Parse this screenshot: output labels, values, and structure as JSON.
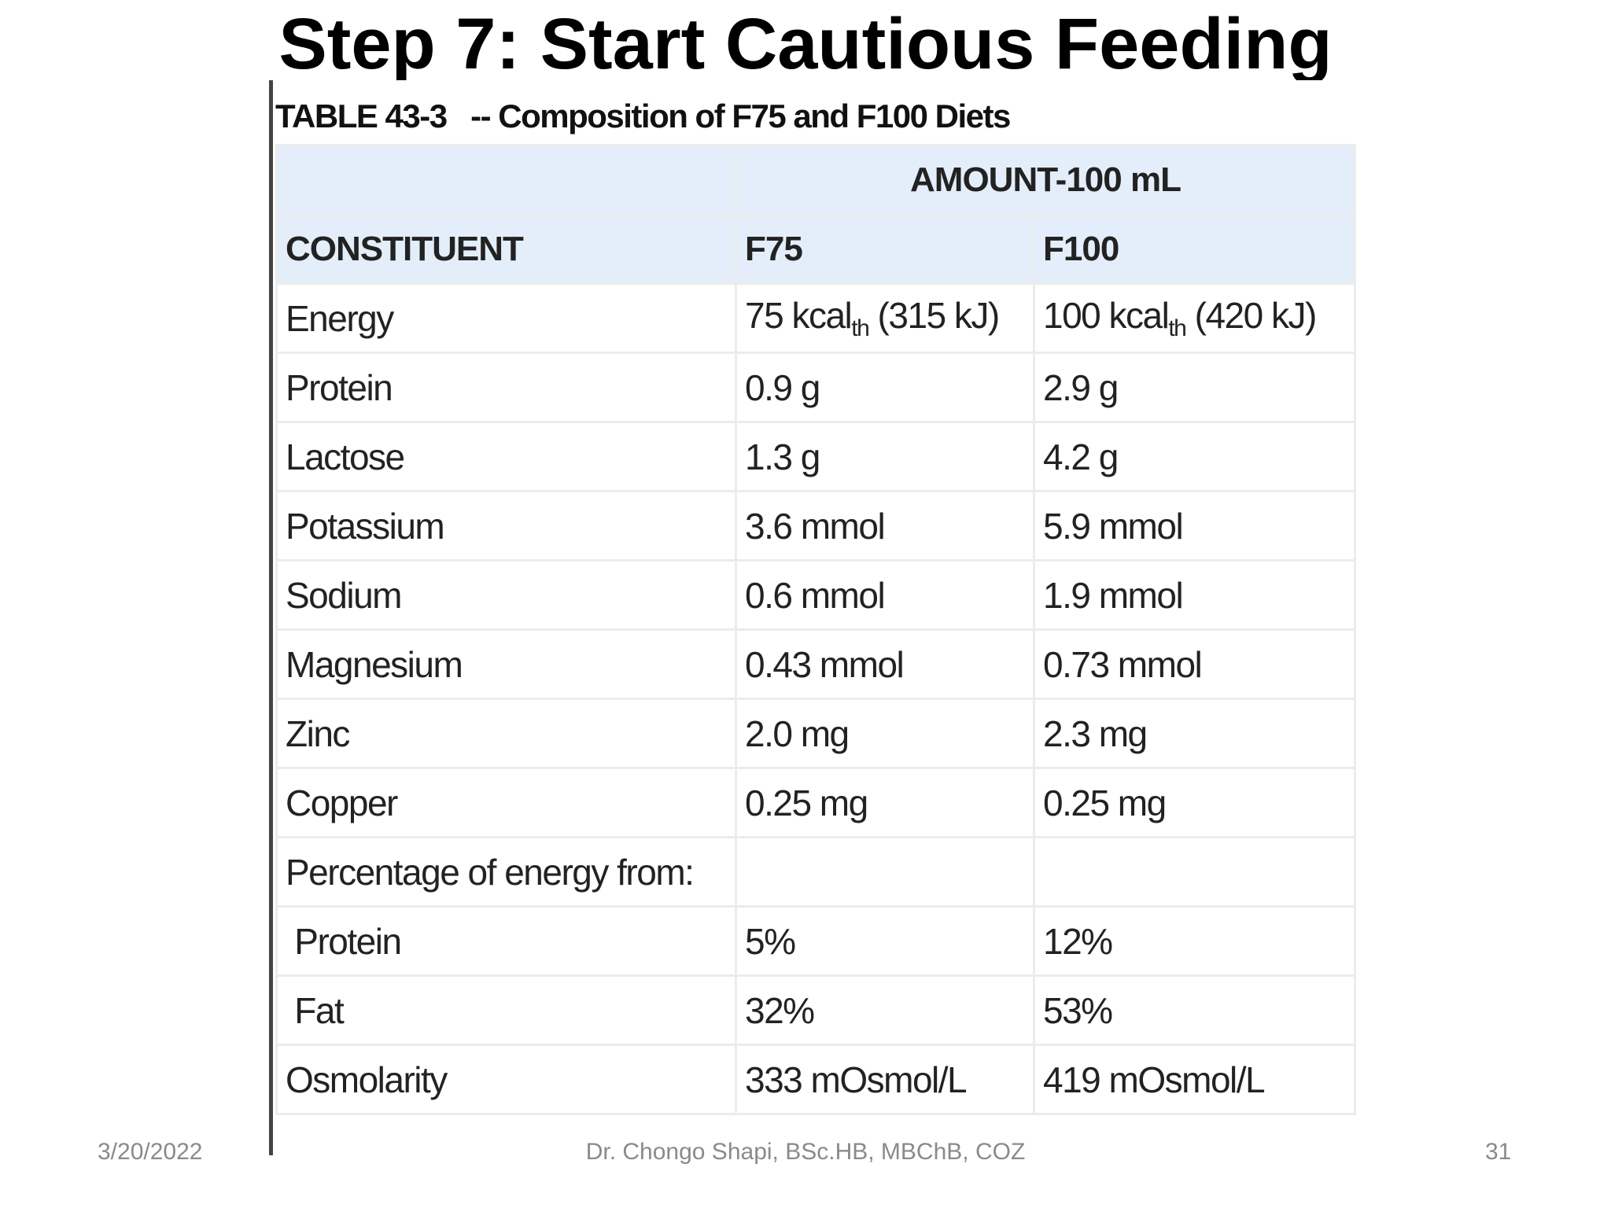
{
  "slide": {
    "title": "Step 7: Start Cautious Feeding"
  },
  "table": {
    "caption": "TABLE 43-3   -- Composition of F75 and F100 Diets",
    "group_header": "AMOUNT-100 mL",
    "columns": [
      "CONSTITUENT",
      "F75",
      "F100"
    ],
    "energy_row": {
      "label": "Energy",
      "f75": {
        "main": "75 kcal",
        "sub": "th",
        "rest": " (315 kJ)"
      },
      "f100": {
        "main": "100 kcal",
        "sub": "th",
        "rest": " (420 kJ)"
      }
    },
    "rows": [
      [
        "Protein",
        "0.9 g",
        "2.9 g"
      ],
      [
        "Lactose",
        "1.3 g",
        "4.2 g"
      ],
      [
        "Potassium",
        "3.6 mmol",
        "5.9 mmol"
      ],
      [
        "Sodium",
        "0.6 mmol",
        "1.9 mmol"
      ],
      [
        "Magnesium",
        "0.43 mmol",
        "0.73 mmol"
      ],
      [
        "Zinc",
        "2.0 mg",
        "2.3 mg"
      ],
      [
        "Copper",
        "0.25 mg",
        "0.25 mg"
      ],
      [
        "Percentage of energy from:"
      ],
      [
        " Protein",
        "5%",
        "12%"
      ],
      [
        " Fat",
        "32%",
        "53%"
      ],
      [
        "Osmolarity",
        "333 mOsmol/L",
        "419 mOsmol/L"
      ]
    ]
  },
  "footer": {
    "date": "3/20/2022",
    "author": "Dr. Chongo Shapi, BSc.HB, MBChB, COZ",
    "page": "31"
  }
}
